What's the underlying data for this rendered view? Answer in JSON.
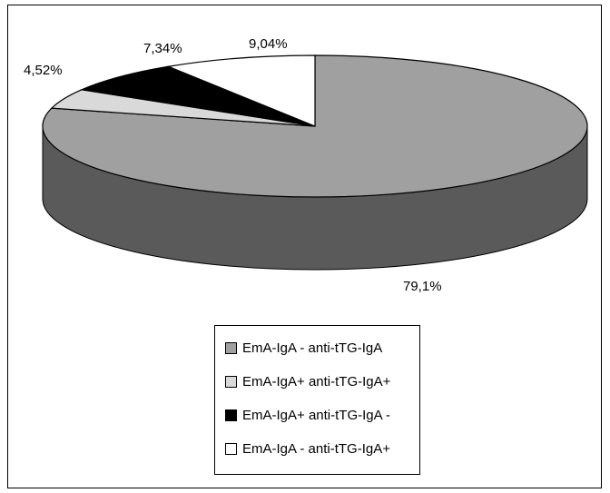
{
  "chart_data": {
    "type": "pie",
    "style": "3d",
    "slices": [
      {
        "label": "EmA-IgA - anti-tTG-IgA",
        "value": 79.1,
        "value_label": "79,1%",
        "color": "#a0a0a0",
        "side_color": "#5a5a5a"
      },
      {
        "label": "EmA-IgA+ anti-tTG-IgA+",
        "value": 4.52,
        "value_label": "4,52%",
        "color": "#d9d9d9",
        "side_color": "#9a9a9a"
      },
      {
        "label": "EmA-IgA+ anti-tTG-IgA -",
        "value": 7.34,
        "value_label": "7,34%",
        "color": "#000000",
        "side_color": "#000000"
      },
      {
        "label": "EmA-IgA - anti-tTG-IgA+",
        "value": 9.04,
        "value_label": "9,04%",
        "color": "#ffffff",
        "side_color": "#e0e0e0"
      }
    ],
    "legend_position": "bottom",
    "title": ""
  },
  "legend": {
    "items": [
      {
        "label": "EmA-IgA - anti-tTG-IgA",
        "color": "#a0a0a0"
      },
      {
        "label": "EmA-IgA+ anti-tTG-IgA+",
        "color": "#d9d9d9"
      },
      {
        "label": "EmA-IgA+ anti-tTG-IgA -",
        "color": "#000000"
      },
      {
        "label": "EmA-IgA - anti-tTG-IgA+",
        "color": "#ffffff"
      }
    ]
  }
}
